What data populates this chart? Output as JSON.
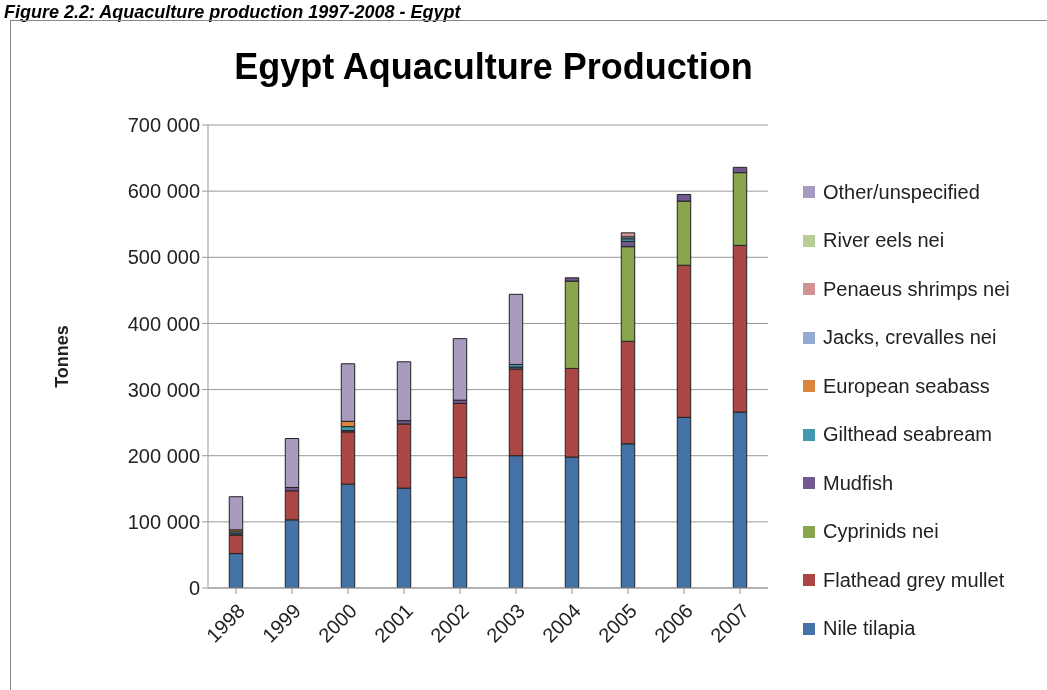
{
  "chart_data": {
    "type": "bar",
    "title": "Egypt Aquaculture Production",
    "ylabel": "Tonnes",
    "annotations": [
      "Figure 2.2: Aquaculture production 1997-2008 - Egypt"
    ],
    "categories": [
      "1998",
      "1999",
      "2000",
      "2001",
      "2002",
      "2003",
      "2004",
      "2005",
      "2006",
      "2007"
    ],
    "stacked": true,
    "legend": "right",
    "grid": "y",
    "ylim": [
      0,
      700000
    ],
    "yticks": [
      {
        "value": 0,
        "label": "0"
      },
      {
        "value": 100000,
        "label": "100 000"
      },
      {
        "value": 200000,
        "label": "200 000"
      },
      {
        "value": 300000,
        "label": "300 000"
      },
      {
        "value": 400000,
        "label": "400 000"
      },
      {
        "value": 500000,
        "label": "500 000"
      },
      {
        "value": 600000,
        "label": "600 000"
      },
      {
        "value": 700000,
        "label": "700 000"
      }
    ],
    "series": [
      {
        "name": "Nile tilapia",
        "color": "#4572a7",
        "values": [
          52000,
          103000,
          157000,
          151000,
          167000,
          200000,
          198000,
          218000,
          258000,
          266000
        ]
      },
      {
        "name": "Flathead grey mullet",
        "color": "#aa4643",
        "values": [
          28000,
          44000,
          79000,
          97000,
          112000,
          131000,
          134000,
          155000,
          230000,
          252000
        ]
      },
      {
        "name": "Cyprinids nei",
        "color": "#89a54e",
        "values": [
          0,
          0,
          0,
          0,
          0,
          0,
          132000,
          143000,
          97000,
          110000
        ]
      },
      {
        "name": "Mudfish",
        "color": "#71588f",
        "values": [
          2000,
          5000,
          2000,
          5000,
          5000,
          3000,
          5000,
          8000,
          10000,
          8000
        ]
      },
      {
        "name": "Gilthead seabream",
        "color": "#4198af",
        "values": [
          3000,
          0,
          6000,
          0,
          0,
          4000,
          0,
          4000,
          0,
          0
        ]
      },
      {
        "name": "European seabass",
        "color": "#db843d",
        "values": [
          3000,
          0,
          8000,
          0,
          0,
          0,
          0,
          0,
          0,
          0
        ]
      },
      {
        "name": "Jacks, crevalles nei",
        "color": "#93a9cf",
        "values": [
          0,
          0,
          0,
          0,
          0,
          0,
          0,
          3000,
          0,
          0
        ]
      },
      {
        "name": "Penaeus shrimps nei",
        "color": "#d19392",
        "values": [
          0,
          0,
          0,
          0,
          0,
          0,
          0,
          6000,
          0,
          0
        ]
      },
      {
        "name": "River eels nei",
        "color": "#b9cd96",
        "values": [
          0,
          0,
          0,
          0,
          0,
          0,
          0,
          0,
          0,
          0
        ]
      },
      {
        "name": "Other/unspecified",
        "color": "#a99bbd",
        "values": [
          50000,
          74000,
          87000,
          89000,
          93000,
          106000,
          0,
          0,
          0,
          0
        ]
      }
    ]
  }
}
